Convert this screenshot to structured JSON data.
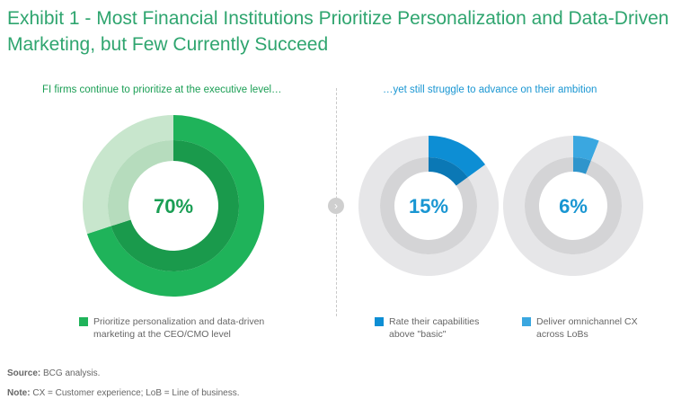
{
  "title": "Exhibit 1 - Most Financial Institutions Prioritize Personalization and Data-Driven Marketing, but Few Currently Succeed",
  "left_heading": "FI firms continue to prioritize at the executive level…",
  "right_heading": "…yet still struggle to advance on their ambition",
  "chart_data": [
    {
      "type": "pie",
      "series": [
        {
          "name": "Prioritize personalization and data-driven marketing at the CEO/CMO level",
          "values": [
            70,
            30
          ]
        }
      ],
      "center_label": "70%",
      "colors": {
        "value": "#1fb35a",
        "value_inner": "#1a9a4c",
        "rest": "#c8e6cd",
        "rest_inner": "#b6dcbd"
      }
    },
    {
      "type": "pie",
      "series": [
        {
          "name": "Rate their capabilities above \"basic\"",
          "values": [
            15,
            85
          ]
        }
      ],
      "center_label": "15%",
      "colors": {
        "value": "#0d8ed4",
        "value_inner": "#0b78b5",
        "rest": "#e6e6e8",
        "rest_inner": "#d4d4d6"
      }
    },
    {
      "type": "pie",
      "series": [
        {
          "name": "Deliver omnichannel CX across LoBs",
          "values": [
            6,
            94
          ]
        }
      ],
      "center_label": "6%",
      "colors": {
        "value": "#3aa7e0",
        "value_inner": "#2f95cc",
        "rest": "#e6e6e8",
        "rest_inner": "#d4d4d6"
      }
    }
  ],
  "legend": [
    {
      "text": "Prioritize personalization and data-driven marketing at the CEO/CMO level",
      "color": "#1fb35a"
    },
    {
      "text": "Rate their capabilities above \"basic\"",
      "color": "#0d8ed4"
    },
    {
      "text": "Deliver omnichannel CX across LoBs",
      "color": "#3aa7e0"
    }
  ],
  "source": {
    "label": "Source:",
    "text": "BCG analysis."
  },
  "note": {
    "label": "Note:",
    "text": "CX = Customer experience; LoB = Line of business."
  },
  "icons": {
    "arrow": "chevron-right-icon"
  },
  "arrow_glyph": "›",
  "label_color_green": "#1a9e54",
  "label_color_blue": "#1996d2"
}
